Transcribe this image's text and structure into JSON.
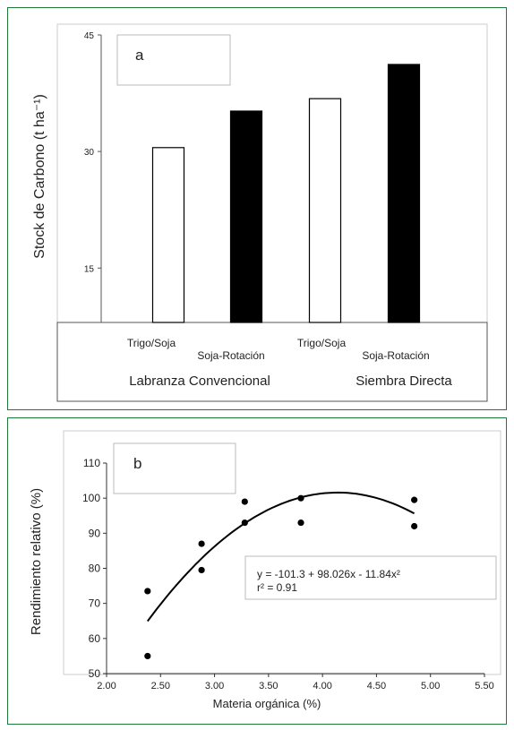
{
  "chart_data": [
    {
      "type": "bar",
      "panel_label": "a",
      "ylabel": "Stock de Carbono (t ha⁻¹)",
      "ylim": [
        8,
        45
      ],
      "yticks": [
        "15",
        "30",
        "45"
      ],
      "ytick_values": [
        15,
        30,
        45
      ],
      "categories": [
        "Trigo/Soja",
        "Soja-Rotación",
        "Trigo/Soja",
        "Soja-Rotación"
      ],
      "groups": [
        "Labranza Convencional",
        "Siembra Directa"
      ],
      "values": [
        30.5,
        35.2,
        36.8,
        41.2
      ],
      "bar_fills": [
        "#ffffff",
        "#000000",
        "#ffffff",
        "#000000"
      ]
    },
    {
      "type": "scatter",
      "panel_label": "b",
      "xlabel": "Materia orgánica (%)",
      "ylabel": "Rendimiento relativo (%)",
      "xlim": [
        2.0,
        5.5
      ],
      "ylim": [
        50,
        110
      ],
      "xticks": [
        "2.00",
        "2.50",
        "3.00",
        "3.50",
        "4.00",
        "4.50",
        "5.00",
        "5.50"
      ],
      "xtick_values": [
        2.0,
        2.5,
        3.0,
        3.5,
        4.0,
        4.5,
        5.0,
        5.5
      ],
      "yticks": [
        "50",
        "60",
        "70",
        "80",
        "90",
        "100",
        "110"
      ],
      "ytick_values": [
        50,
        60,
        70,
        80,
        90,
        100,
        110
      ],
      "points": [
        {
          "x": 2.38,
          "y": 73.5
        },
        {
          "x": 2.38,
          "y": 55
        },
        {
          "x": 2.88,
          "y": 87
        },
        {
          "x": 2.88,
          "y": 79.5
        },
        {
          "x": 3.28,
          "y": 99
        },
        {
          "x": 3.28,
          "y": 93
        },
        {
          "x": 3.8,
          "y": 100
        },
        {
          "x": 3.8,
          "y": 93
        },
        {
          "x": 4.85,
          "y": 99.5
        },
        {
          "x": 4.85,
          "y": 92
        }
      ],
      "fit": {
        "a": -101.3,
        "b": 98.026,
        "c": -11.84,
        "x_range": [
          2.38,
          4.85
        ]
      },
      "equation": "y = -101.3 + 98.026x - 11.84x²",
      "r2_label": "r² = 0.91"
    }
  ]
}
